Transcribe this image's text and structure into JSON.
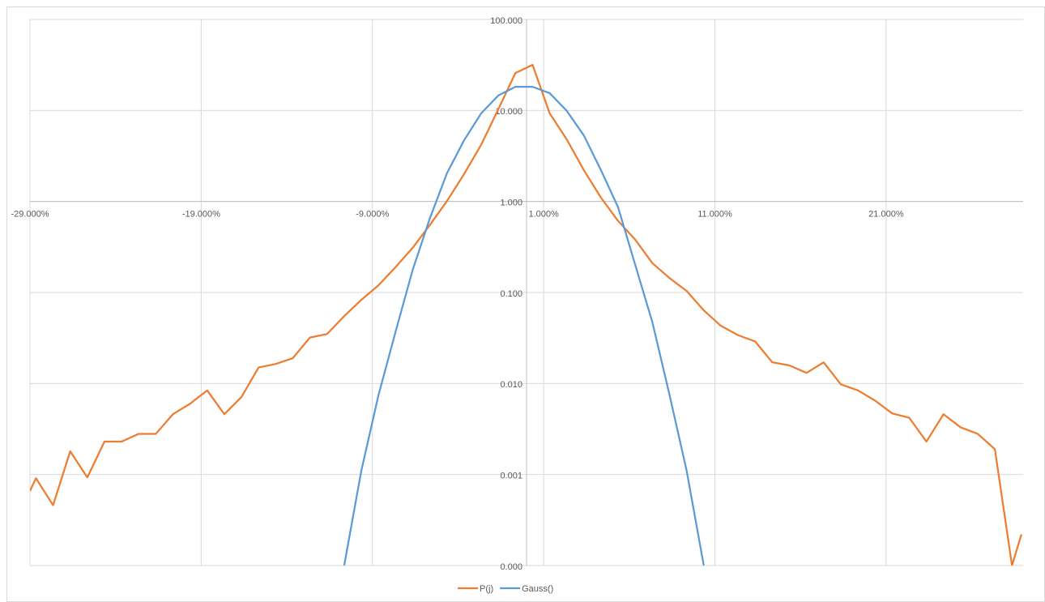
{
  "chart_data": {
    "type": "line",
    "yscale": "log",
    "grid": true,
    "legend": "bottom",
    "x_axis_crosses_y": 1,
    "y_axis_crosses_x": 0,
    "xlim": [
      -29,
      29
    ],
    "xticks": [
      {
        "value": -29,
        "label": "-29.000%"
      },
      {
        "value": -19,
        "label": "-19.000%"
      },
      {
        "value": -9,
        "label": "-9.000%"
      },
      {
        "value": 1,
        "label": "1.000%"
      },
      {
        "value": 11,
        "label": "11.000%"
      },
      {
        "value": 21,
        "label": "21.000%"
      }
    ],
    "ylim": [
      0.0001,
      100
    ],
    "yticks": [
      {
        "value": 0.0001,
        "label": "0.000"
      },
      {
        "value": 0.001,
        "label": "0.001"
      },
      {
        "value": 0.01,
        "label": "0.010"
      },
      {
        "value": 0.1,
        "label": "0.100"
      },
      {
        "value": 1,
        "label": "1.000"
      },
      {
        "value": 10,
        "label": "10.000"
      },
      {
        "value": 100,
        "label": "100.000"
      }
    ],
    "series": [
      {
        "name": "P(j)",
        "color": "#ed7d31",
        "x": [
          -29,
          -28.65,
          -27.65,
          -26.65,
          -25.65,
          -24.65,
          -23.65,
          -22.65,
          -21.65,
          -20.65,
          -19.65,
          -18.65,
          -17.65,
          -16.65,
          -15.65,
          -14.65,
          -13.65,
          -12.65,
          -11.65,
          -10.65,
          -9.65,
          -8.65,
          -7.65,
          -6.65,
          -5.65,
          -4.65,
          -3.65,
          -2.65,
          -1.65,
          -0.65,
          0.35,
          1.35,
          2.35,
          3.35,
          4.35,
          5.35,
          6.35,
          7.35,
          8.35,
          9.35,
          10.35,
          11.35,
          12.35,
          13.35,
          14.35,
          15.35,
          16.35,
          17.35,
          18.35,
          19.35,
          20.35,
          21.35,
          22.35,
          23.35,
          24.35,
          25.35,
          26.35,
          27.35,
          28.35,
          28.9
        ],
        "values": [
          0.00066,
          0.00091,
          0.00046,
          0.0018,
          0.00093,
          0.0023,
          0.0023,
          0.0028,
          0.0028,
          0.0046,
          0.006,
          0.0084,
          0.0046,
          0.0071,
          0.015,
          0.0164,
          0.019,
          0.032,
          0.035,
          0.055,
          0.083,
          0.12,
          0.19,
          0.31,
          0.55,
          1.01,
          2.0,
          4.2,
          10.3,
          25.8,
          31.7,
          9.3,
          4.8,
          2.2,
          1.1,
          0.61,
          0.38,
          0.21,
          0.144,
          0.104,
          0.0636,
          0.043,
          0.034,
          0.029,
          0.0171,
          0.0158,
          0.0131,
          0.0171,
          0.0098,
          0.0084,
          0.0065,
          0.0047,
          0.0042,
          0.0023,
          0.0046,
          0.0033,
          0.0028,
          0.0019,
          0.0001,
          0.00022
        ]
      },
      {
        "name": "Gauss()",
        "color": "#5b9bd5",
        "x": [
          -10.65,
          -9.65,
          -8.65,
          -7.65,
          -6.65,
          -5.65,
          -4.65,
          -3.65,
          -2.65,
          -1.65,
          -0.65,
          0.35,
          1.35,
          2.35,
          3.35,
          4.35,
          5.35,
          6.35,
          7.35,
          8.35,
          9.35,
          10.35
        ],
        "values": [
          0.0001,
          0.0011,
          0.0074,
          0.037,
          0.177,
          0.65,
          2.04,
          4.7,
          9.3,
          14.6,
          18.2,
          18.2,
          15.5,
          9.9,
          5.3,
          2.2,
          0.86,
          0.2,
          0.047,
          0.0075,
          0.0011,
          0.0001
        ]
      }
    ]
  }
}
